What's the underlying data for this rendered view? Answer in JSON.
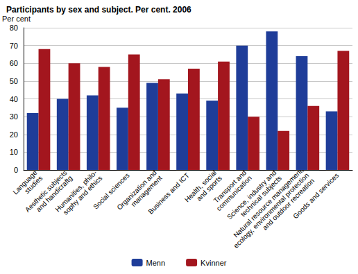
{
  "chart_data": {
    "type": "bar",
    "title": "Participants by sex and subject. Per cent. 2006",
    "y_label": "Per cent",
    "categories": [
      "Language\nstudies",
      "Aesthetic subjects\nand handicraftg",
      "Humanities, philo-\nsophy and ethics",
      "Social sciences",
      "Organization and\nmanagement",
      "Business and ICT",
      "Health, social\nand sports",
      "Transport and\ncommunication",
      "Science, industry and\ntechnical subjects",
      "Natural resource management,\necology, environmental protection\nand outdoor recreation",
      "Goods and services"
    ],
    "series": [
      {
        "name": "Menn",
        "color": "#1f3d99",
        "values": [
          32,
          40,
          42,
          35,
          49,
          43,
          39,
          70,
          78,
          64,
          33
        ]
      },
      {
        "name": "Kvinner",
        "color": "#a3161e",
        "values": [
          68,
          60,
          58,
          65,
          51,
          57,
          61,
          30,
          22,
          36,
          67
        ]
      }
    ],
    "ylim": [
      0,
      80
    ],
    "yticks": [
      0,
      10,
      20,
      30,
      40,
      50,
      60,
      70,
      80
    ],
    "grid": true,
    "legend": "bottom"
  }
}
